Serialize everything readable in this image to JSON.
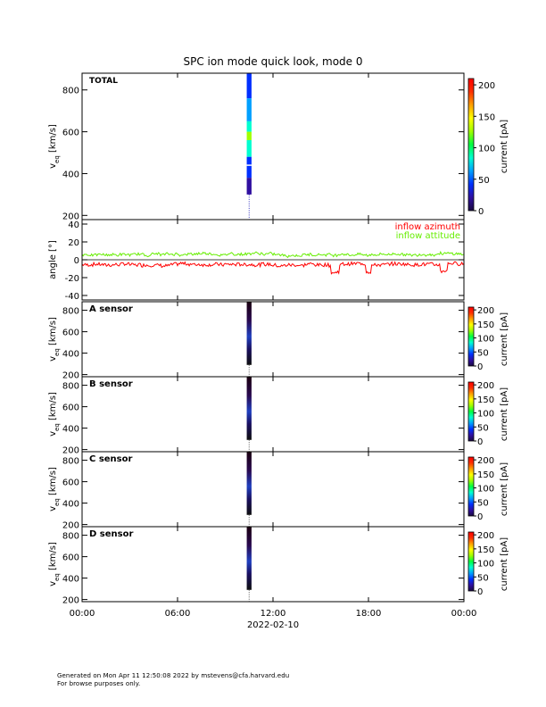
{
  "title": "SPC ion mode quick look, mode 0",
  "xaxis": {
    "tick_labels": [
      "00:00",
      "06:00",
      "12:00",
      "18:00",
      "00:00"
    ],
    "date_label": "2022-02-10",
    "range_hours": [
      0,
      24
    ]
  },
  "footer": {
    "line1": "Generated on Mon Apr 11 12:50:08 2022 by mstevens@cfa.harvard.edu",
    "line2": "For browse purposes only."
  },
  "colors": {
    "azimuth": "#ff0000",
    "attitude": "#66ee00",
    "colorbar": [
      "#1a0a40",
      "#3010a0",
      "#0030ff",
      "#00a0ff",
      "#00ffd0",
      "#00ff40",
      "#a0ff00",
      "#ffff00",
      "#ffa000",
      "#ff3000",
      "#ff0000"
    ]
  },
  "chart_data": [
    {
      "type": "heatmap",
      "panel": "total",
      "label": "TOTAL",
      "ylabel_main": "v",
      "ylabel_sub": "eq",
      "ylabel_unit": "[km/s]",
      "ylim": [
        180,
        880
      ],
      "yticks": [
        200,
        400,
        600,
        800
      ],
      "colorbar_label": "current [pA]",
      "colorbar_range": [
        0,
        210
      ],
      "colorbar_ticks": [
        0,
        50,
        100,
        150,
        200
      ],
      "data_window_hours": [
        10.35,
        10.65
      ],
      "value_profile": [
        {
          "v": 880,
          "current": 40
        },
        {
          "v": 760,
          "current": 55
        },
        {
          "v": 650,
          "current": 80
        },
        {
          "v": 600,
          "current": 120
        },
        {
          "v": 560,
          "current": 80
        },
        {
          "v": 480,
          "current": 40
        },
        {
          "v": 380,
          "current": 20
        },
        {
          "v": 300,
          "current": 10
        }
      ]
    },
    {
      "type": "line",
      "panel": "angle",
      "ylabel": "angle [°]",
      "ylim": [
        -45,
        45
      ],
      "yticks": [
        -40,
        -20,
        0,
        20,
        40
      ],
      "series": [
        {
          "name": "inflow azimuth",
          "color": "#ff0000",
          "mean": -5,
          "noise": 4
        },
        {
          "name": "inflow attitude",
          "color": "#66ee00",
          "mean": 6,
          "noise": 3
        }
      ]
    },
    {
      "type": "heatmap",
      "panel": "a",
      "label": "A sensor",
      "ylabel_main": "v",
      "ylabel_sub": "eq",
      "ylabel_unit": "[km/s]",
      "ylim": [
        180,
        880
      ],
      "yticks": [
        200,
        400,
        600,
        800
      ],
      "colorbar_label": "current [pA]",
      "colorbar_ticks": [
        0,
        50,
        100,
        150,
        200
      ],
      "data_window_hours": [
        10.35,
        10.65
      ]
    },
    {
      "type": "heatmap",
      "panel": "b",
      "label": "B sensor",
      "ylabel_main": "v",
      "ylabel_sub": "eq",
      "ylabel_unit": "[km/s]",
      "ylim": [
        180,
        880
      ],
      "yticks": [
        200,
        400,
        600,
        800
      ],
      "colorbar_label": "current [pA]",
      "colorbar_ticks": [
        0,
        50,
        100,
        150,
        200
      ],
      "data_window_hours": [
        10.35,
        10.65
      ]
    },
    {
      "type": "heatmap",
      "panel": "c",
      "label": "C sensor",
      "ylabel_main": "v",
      "ylabel_sub": "eq",
      "ylabel_unit": "[km/s]",
      "ylim": [
        180,
        880
      ],
      "yticks": [
        200,
        400,
        600,
        800
      ],
      "colorbar_label": "current [pA]",
      "colorbar_ticks": [
        0,
        50,
        100,
        150,
        200
      ],
      "data_window_hours": [
        10.35,
        10.65
      ]
    },
    {
      "type": "heatmap",
      "panel": "d",
      "label": "D sensor",
      "ylabel_main": "v",
      "ylabel_sub": "eq",
      "ylabel_unit": "[km/s]",
      "ylim": [
        180,
        880
      ],
      "yticks": [
        200,
        400,
        600,
        800
      ],
      "colorbar_label": "current [pA]",
      "colorbar_ticks": [
        0,
        50,
        100,
        150,
        200
      ],
      "data_window_hours": [
        10.35,
        10.65
      ]
    }
  ]
}
